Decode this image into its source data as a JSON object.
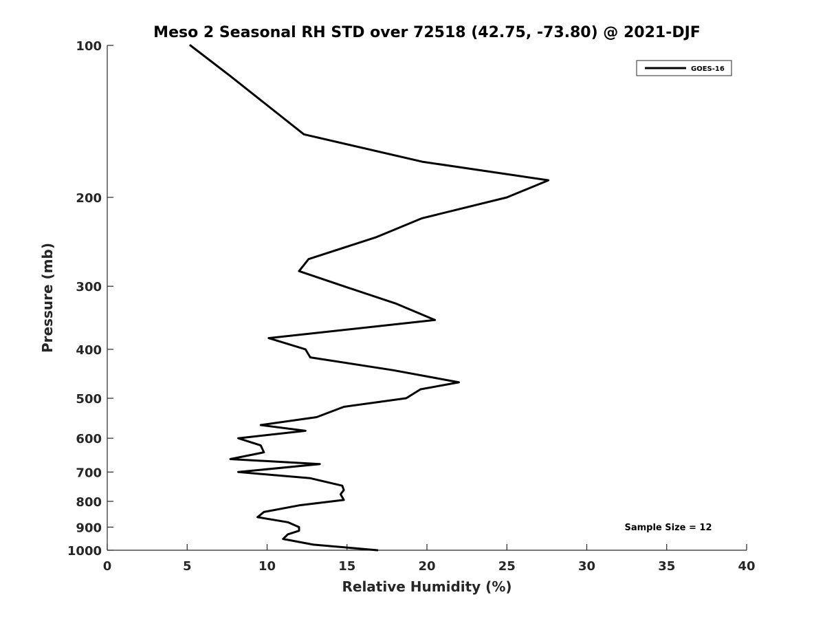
{
  "chart_data": {
    "type": "line",
    "title": "Meso 2 Seasonal RH STD over 72518 (42.75, -73.80) @ 2021-DJF",
    "xlabel": "Relative Humidity (%)",
    "ylabel": "Pressure (mb)",
    "xlim": [
      0,
      40
    ],
    "ylim": [
      1000,
      100
    ],
    "yscale": "log",
    "grid": false,
    "legend_position": "top-right",
    "x_ticks": [
      0,
      5,
      10,
      15,
      20,
      25,
      30,
      35,
      40
    ],
    "x_tick_labels": [
      "0",
      "5",
      "10",
      "15",
      "20",
      "25",
      "30",
      "35",
      "40"
    ],
    "y_ticks": [
      100,
      200,
      300,
      400,
      500,
      600,
      700,
      800,
      900,
      1000
    ],
    "y_tick_labels": [
      "100",
      "200",
      "300",
      "400",
      "500",
      "600",
      "700",
      "800",
      "900",
      "1000"
    ],
    "series": [
      {
        "name": "GOES-16",
        "color": "#000000",
        "x": [
          5.2,
          7.7,
          12.3,
          19.7,
          27.6,
          25.0,
          19.7,
          16.8,
          12.6,
          12.0,
          14.8,
          18.1,
          20.5,
          10.1,
          12.4,
          12.7,
          17.9,
          22.0,
          19.6,
          18.7,
          14.8,
          13.1,
          9.6,
          12.4,
          8.2,
          9.6,
          9.8,
          7.7,
          13.3,
          8.2,
          12.7,
          14.7,
          14.8,
          14.6,
          14.8,
          12.0,
          9.8,
          9.4,
          11.3,
          12.0,
          12.0,
          11.3,
          11.0,
          12.9,
          16.9
        ],
        "y": [
          100,
          115,
          150,
          170,
          185,
          200,
          220,
          240,
          265,
          280,
          300,
          325,
          350,
          380,
          400,
          415,
          440,
          465,
          480,
          500,
          520,
          545,
          565,
          580,
          600,
          620,
          640,
          660,
          675,
          700,
          720,
          745,
          760,
          775,
          795,
          815,
          840,
          860,
          880,
          900,
          915,
          930,
          950,
          975,
          1000
        ]
      }
    ],
    "annotations": [
      "Sample Size = 12"
    ]
  }
}
